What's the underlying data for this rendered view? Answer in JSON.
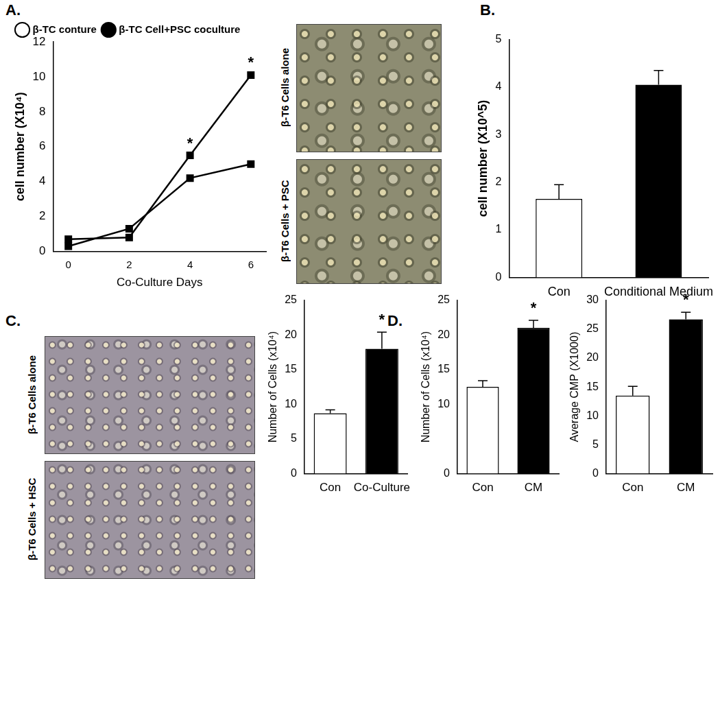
{
  "panels": [
    {
      "label": "A.",
      "images": [
        "β-T6 Cells alone",
        "β-T6 Cells + PSC"
      ]
    },
    {
      "label": "B."
    },
    {
      "label": "C.",
      "images": [
        "β-T6 Cells alone",
        "β-T6 Cells + HSC"
      ]
    },
    {
      "label": "D."
    }
  ],
  "chart_data": [
    {
      "type": "line",
      "x": [
        0,
        2,
        4,
        6
      ],
      "series": [
        {
          "name": "β-TC conture",
          "color": "#000000",
          "marker": "square",
          "values": [
            0.3,
            1.3,
            4.2,
            5.0
          ]
        },
        {
          "name": "β-TC Cell+PSC coculture",
          "color": "#000000",
          "marker": "square",
          "values": [
            0.7,
            0.8,
            5.5,
            10.1
          ]
        }
      ],
      "x_label": "Co-Culture Days",
      "y_label": "cell number (X10⁴)",
      "xlim": [
        -0.5,
        6.5
      ],
      "xticks": [
        0,
        2,
        4,
        6
      ],
      "ylim": [
        0,
        12
      ],
      "yticks": [
        0,
        2,
        4,
        6,
        8,
        10,
        12
      ],
      "grid": false,
      "legend": "top",
      "annotations": [
        {
          "x": 4,
          "text": "*"
        },
        {
          "x": 6,
          "text": "*"
        }
      ]
    },
    {
      "type": "bar",
      "categories": [
        "Con",
        "Conditional Medium"
      ],
      "values": [
        1.65,
        4.05
      ],
      "errors": [
        0.3,
        0.3
      ],
      "colors": [
        "#ffffff",
        "#000000"
      ],
      "y_label": "cell number (X10^5)",
      "ylim": [
        0,
        5
      ],
      "yticks": [
        0,
        1,
        2,
        3,
        4,
        5
      ],
      "grid": false
    },
    {
      "type": "bar",
      "categories": [
        "Con",
        "Co-Culture"
      ],
      "values": [
        8.7,
        18.0
      ],
      "errors": [
        0.5,
        2.4
      ],
      "colors": [
        "#ffffff",
        "#000000"
      ],
      "y_label": "Number of Cells (x10⁴)",
      "ylim": [
        0,
        25
      ],
      "yticks": [
        0,
        5,
        10,
        15,
        20,
        25
      ],
      "grid": false,
      "annotations": [
        {
          "category": "Co-Culture",
          "text": "*"
        }
      ]
    },
    {
      "type": "bar",
      "categories": [
        "Con",
        "CM"
      ],
      "values": [
        12.5,
        21.0
      ],
      "errors": [
        0.9,
        1.1
      ],
      "colors": [
        "#ffffff",
        "#000000"
      ],
      "y_label": "Number of Cells (x10⁴)",
      "ylim": [
        0,
        25
      ],
      "yticks": [
        0,
        10,
        15,
        20,
        25
      ],
      "grid": false,
      "annotations": [
        {
          "category": "CM",
          "text": "*"
        }
      ]
    },
    {
      "type": "bar",
      "categories": [
        "Con",
        "CM"
      ],
      "values": [
        13.5,
        26.7
      ],
      "errors": [
        1.6,
        1.2
      ],
      "colors": [
        "#ffffff",
        "#000000"
      ],
      "y_label": "Average CMP (X1000)",
      "ylim": [
        0,
        30
      ],
      "yticks": [
        0,
        5,
        10,
        15,
        20,
        25,
        30
      ],
      "grid": false,
      "annotations": [
        {
          "category": "CM",
          "text": "*"
        }
      ]
    }
  ]
}
